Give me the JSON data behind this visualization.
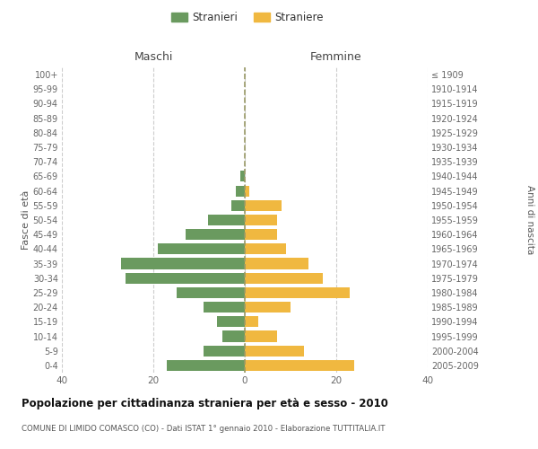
{
  "age_groups": [
    "0-4",
    "5-9",
    "10-14",
    "15-19",
    "20-24",
    "25-29",
    "30-34",
    "35-39",
    "40-44",
    "45-49",
    "50-54",
    "55-59",
    "60-64",
    "65-69",
    "70-74",
    "75-79",
    "80-84",
    "85-89",
    "90-94",
    "95-99",
    "100+"
  ],
  "birth_years": [
    "2005-2009",
    "2000-2004",
    "1995-1999",
    "1990-1994",
    "1985-1989",
    "1980-1984",
    "1975-1979",
    "1970-1974",
    "1965-1969",
    "1960-1964",
    "1955-1959",
    "1950-1954",
    "1945-1949",
    "1940-1944",
    "1935-1939",
    "1930-1934",
    "1925-1929",
    "1920-1924",
    "1915-1919",
    "1910-1914",
    "≤ 1909"
  ],
  "maschi": [
    17,
    9,
    5,
    6,
    9,
    15,
    26,
    27,
    19,
    13,
    8,
    3,
    2,
    1,
    0,
    0,
    0,
    0,
    0,
    0,
    0
  ],
  "femmine": [
    24,
    13,
    7,
    3,
    10,
    23,
    17,
    14,
    9,
    7,
    7,
    8,
    1,
    0,
    0,
    0,
    0,
    0,
    0,
    0,
    0
  ],
  "maschi_color": "#6a9a5f",
  "femmine_color": "#f0b840",
  "bg_color": "#ffffff",
  "grid_color": "#cccccc",
  "bar_height": 0.75,
  "xlim": 40,
  "title_main": "Popolazione per cittadinanza straniera per età e sesso - 2010",
  "title_sub": "COMUNE DI LIMIDO COMASCO (CO) - Dati ISTAT 1° gennaio 2010 - Elaborazione TUTTITALIA.IT",
  "ylabel_left": "Fasce di età",
  "ylabel_right": "Anni di nascita",
  "label_maschi": "Stranieri",
  "label_femmine": "Straniere",
  "header_maschi": "Maschi",
  "header_femmine": "Femmine"
}
